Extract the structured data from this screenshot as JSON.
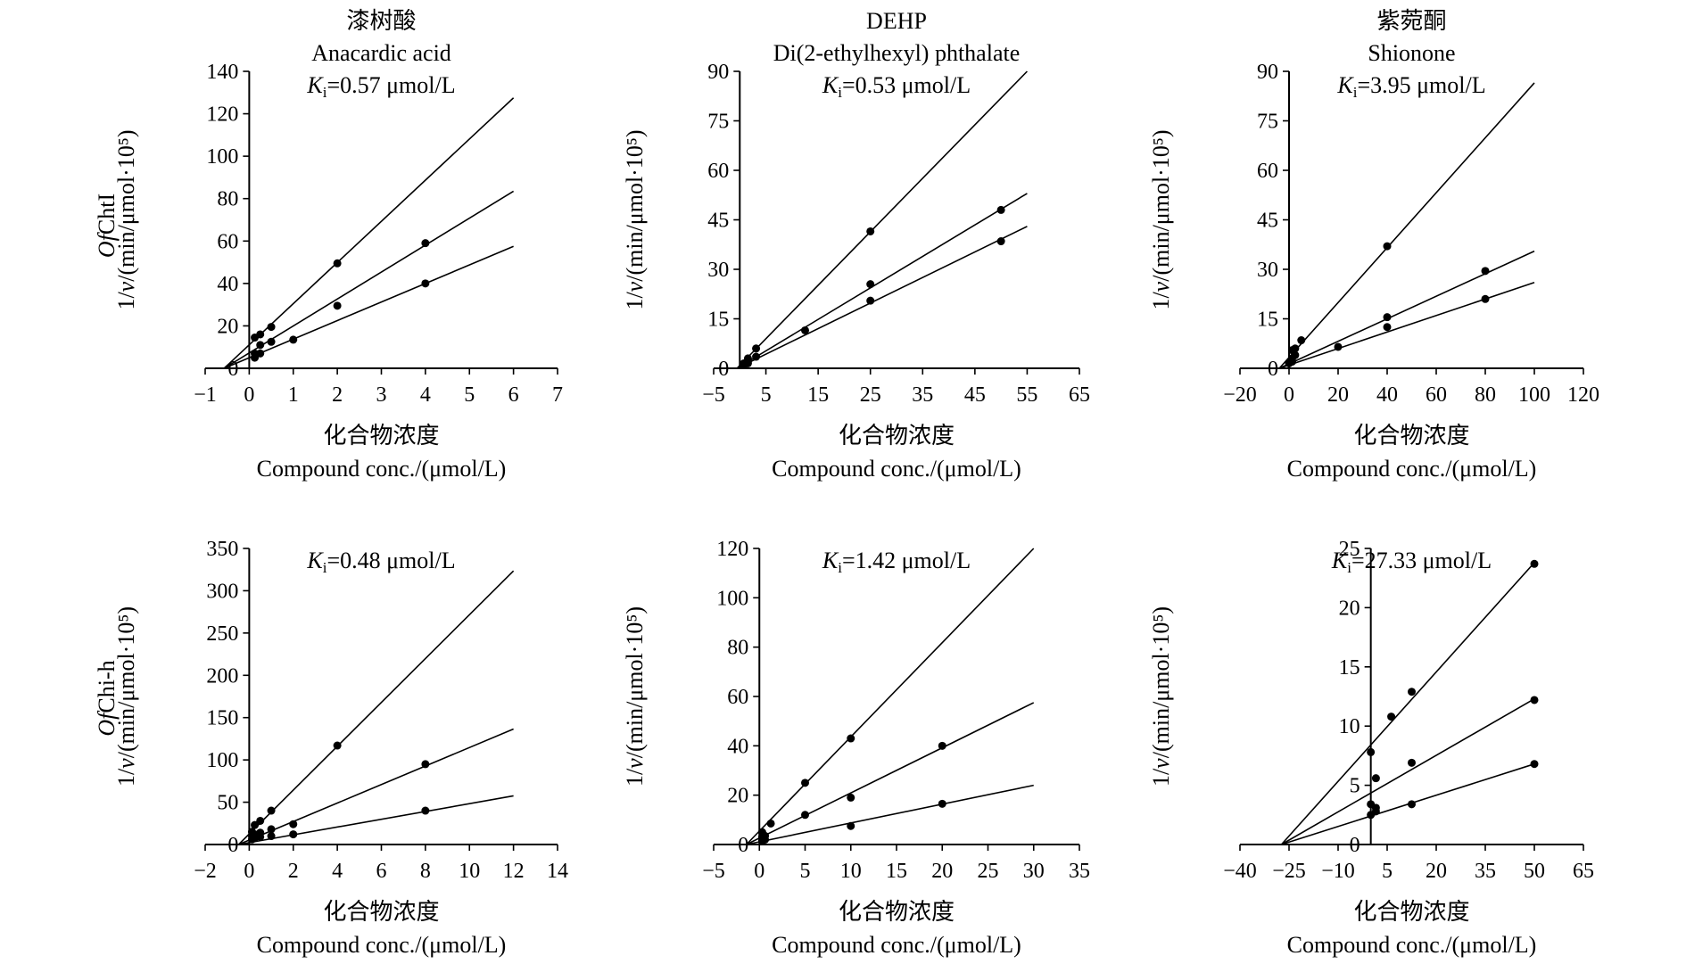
{
  "figure": {
    "row_labels": [
      "OfChtI",
      "OfChi-h"
    ],
    "ylabel": "1/v/(min/μmol·10⁵)",
    "xlabel_cn": "化合物浓度",
    "xlabel_en": "Compound conc./(μmol/L)"
  },
  "chart_data": [
    {
      "type": "scatter",
      "title_cn": "漆树酸",
      "title_en": "Anacardic acid",
      "ki": "Ki=0.57 μmol/L",
      "xlim": [
        -1,
        7
      ],
      "ylim": [
        0,
        140
      ],
      "xticks": [
        -1,
        0,
        1,
        2,
        3,
        4,
        5,
        6,
        7
      ],
      "yticks": [
        0,
        20,
        40,
        60,
        80,
        100,
        120,
        140
      ],
      "x_intercept": -0.57,
      "series": [
        {
          "line_end": [
            6,
            127.5
          ],
          "points": [
            [
              0.125,
              14.5
            ],
            [
              0.25,
              16
            ],
            [
              0.5,
              19.5
            ],
            [
              2,
              49.5
            ]
          ]
        },
        {
          "line_end": [
            6,
            83.5
          ],
          "points": [
            [
              0.125,
              7
            ],
            [
              0.25,
              11
            ],
            [
              0.5,
              12.5
            ],
            [
              2,
              29.5
            ],
            [
              4,
              59
            ]
          ]
        },
        {
          "line_end": [
            6,
            57.5
          ],
          "points": [
            [
              0.125,
              5
            ],
            [
              0.25,
              7
            ],
            [
              1,
              13.5
            ],
            [
              4,
              40
            ]
          ]
        }
      ]
    },
    {
      "type": "scatter",
      "title_cn": "",
      "title_en": "DEHP",
      "title_en2": "Di(2-ethylhexyl) phthalate",
      "ki": "Ki=0.53 μmol/L",
      "xlim": [
        -5,
        65
      ],
      "ylim": [
        0,
        90
      ],
      "xticks": [
        -5,
        5,
        15,
        25,
        35,
        45,
        55,
        65
      ],
      "yticks": [
        0,
        15,
        30,
        45,
        60,
        75,
        90
      ],
      "x_intercept": -0.53,
      "series": [
        {
          "line_end": [
            55,
            90
          ],
          "points": [
            [
              0.78,
              1.5
            ],
            [
              1.56,
              3
            ],
            [
              3.12,
              6
            ],
            [
              25,
              41.5
            ]
          ]
        },
        {
          "line_end": [
            55,
            53
          ],
          "points": [
            [
              0.78,
              1
            ],
            [
              1.56,
              2
            ],
            [
              3.12,
              3.5
            ],
            [
              25,
              25.5
            ],
            [
              50,
              48
            ]
          ]
        },
        {
          "line_end": [
            55,
            43
          ],
          "points": [
            [
              0.78,
              1
            ],
            [
              1.56,
              1.5
            ],
            [
              12.5,
              11.5
            ],
            [
              25,
              20.5
            ],
            [
              50,
              38.5
            ]
          ]
        }
      ]
    },
    {
      "type": "scatter",
      "title_cn": "紫菀酮",
      "title_en": "Shionone",
      "ki": "Ki=3.95 μmol/L",
      "xlim": [
        -20,
        120
      ],
      "ylim": [
        0,
        90
      ],
      "xticks": [
        -20,
        0,
        20,
        40,
        60,
        80,
        100,
        120
      ],
      "yticks": [
        0,
        15,
        30,
        45,
        60,
        75,
        90
      ],
      "x_intercept": -3.95,
      "series": [
        {
          "line_end": [
            100,
            86.5
          ],
          "points": [
            [
              1.25,
              5.5
            ],
            [
              2.5,
              6
            ],
            [
              5,
              8.5
            ],
            [
              40,
              37
            ]
          ]
        },
        {
          "line_end": [
            100,
            35.5
          ],
          "points": [
            [
              1.25,
              3
            ],
            [
              2.5,
              4
            ],
            [
              40,
              15.5
            ],
            [
              80,
              29.5
            ]
          ]
        },
        {
          "line_end": [
            100,
            26
          ],
          "points": [
            [
              0,
              1.5
            ],
            [
              1.25,
              2
            ],
            [
              20,
              6.5
            ],
            [
              40,
              12.5
            ],
            [
              80,
              21
            ]
          ]
        }
      ]
    },
    {
      "type": "scatter",
      "title_cn": "",
      "title_en": "",
      "ki": "Ki=0.48 μmol/L",
      "xlim": [
        -2,
        14
      ],
      "ylim": [
        0,
        350
      ],
      "xticks": [
        -2,
        0,
        2,
        4,
        6,
        8,
        10,
        12,
        14
      ],
      "yticks": [
        0,
        50,
        100,
        150,
        200,
        250,
        300,
        350
      ],
      "x_intercept": -0.48,
      "series": [
        {
          "line_end": [
            12,
            323.5
          ],
          "points": [
            [
              0.125,
              15
            ],
            [
              0.25,
              23
            ],
            [
              0.5,
              28
            ],
            [
              1,
              40
            ],
            [
              4,
              117
            ]
          ]
        },
        {
          "line_end": [
            12,
            136.5
          ],
          "points": [
            [
              0.125,
              10
            ],
            [
              0.25,
              12
            ],
            [
              0.5,
              14
            ],
            [
              1,
              18
            ],
            [
              2,
              24
            ],
            [
              8,
              95
            ]
          ]
        },
        {
          "line_end": [
            12,
            57.5
          ],
          "points": [
            [
              0.125,
              6
            ],
            [
              0.25,
              8
            ],
            [
              0.5,
              9
            ],
            [
              1,
              10
            ],
            [
              2,
              12
            ],
            [
              8,
              40
            ]
          ]
        }
      ]
    },
    {
      "type": "scatter",
      "title_cn": "",
      "title_en": "",
      "ki": "Ki=1.42 μmol/L",
      "xlim": [
        -5,
        35
      ],
      "ylim": [
        0,
        120
      ],
      "xticks": [
        -5,
        0,
        5,
        10,
        15,
        20,
        25,
        30,
        35
      ],
      "yticks": [
        0,
        20,
        40,
        60,
        80,
        100,
        120
      ],
      "x_intercept": -1.42,
      "series": [
        {
          "line_end": [
            30,
            120
          ],
          "points": [
            [
              0.31,
              5
            ],
            [
              1.25,
              8.5
            ],
            [
              5,
              25
            ],
            [
              10,
              43
            ]
          ]
        },
        {
          "line_end": [
            30,
            57.5
          ],
          "points": [
            [
              0.31,
              3
            ],
            [
              0.62,
              3.5
            ],
            [
              5,
              12
            ],
            [
              10,
              19
            ],
            [
              20,
              40
            ]
          ]
        },
        {
          "line_end": [
            30,
            24
          ],
          "points": [
            [
              0.31,
              1.5
            ],
            [
              0.62,
              2
            ],
            [
              10,
              7.5
            ],
            [
              20,
              16.5
            ]
          ]
        }
      ]
    },
    {
      "type": "scatter",
      "title_cn": "",
      "title_en": "",
      "ki": "Ki=27.33 μmol/L",
      "xlim": [
        -40,
        65
      ],
      "ylim": [
        0,
        25
      ],
      "xticks": [
        -40,
        -25,
        -10,
        5,
        20,
        35,
        50,
        65
      ],
      "yticks": [
        0,
        5,
        10,
        15,
        20,
        25
      ],
      "x_intercept": -27.33,
      "series": [
        {
          "line_end": [
            50,
            23.8
          ],
          "points": [
            [
              0,
              7.8
            ],
            [
              1.56,
              5.6
            ],
            [
              6.25,
              10.8
            ],
            [
              12.5,
              12.9
            ],
            [
              50,
              23.7
            ]
          ]
        },
        {
          "line_end": [
            50,
            12.3
          ],
          "points": [
            [
              0,
              3.4
            ],
            [
              1.56,
              2.8
            ],
            [
              12.5,
              6.9
            ],
            [
              50,
              12.2
            ]
          ]
        },
        {
          "line_end": [
            50,
            6.8
          ],
          "points": [
            [
              0,
              2.5
            ],
            [
              1.56,
              3.1
            ],
            [
              12.5,
              3.4
            ],
            [
              50,
              6.8
            ]
          ]
        }
      ]
    }
  ]
}
